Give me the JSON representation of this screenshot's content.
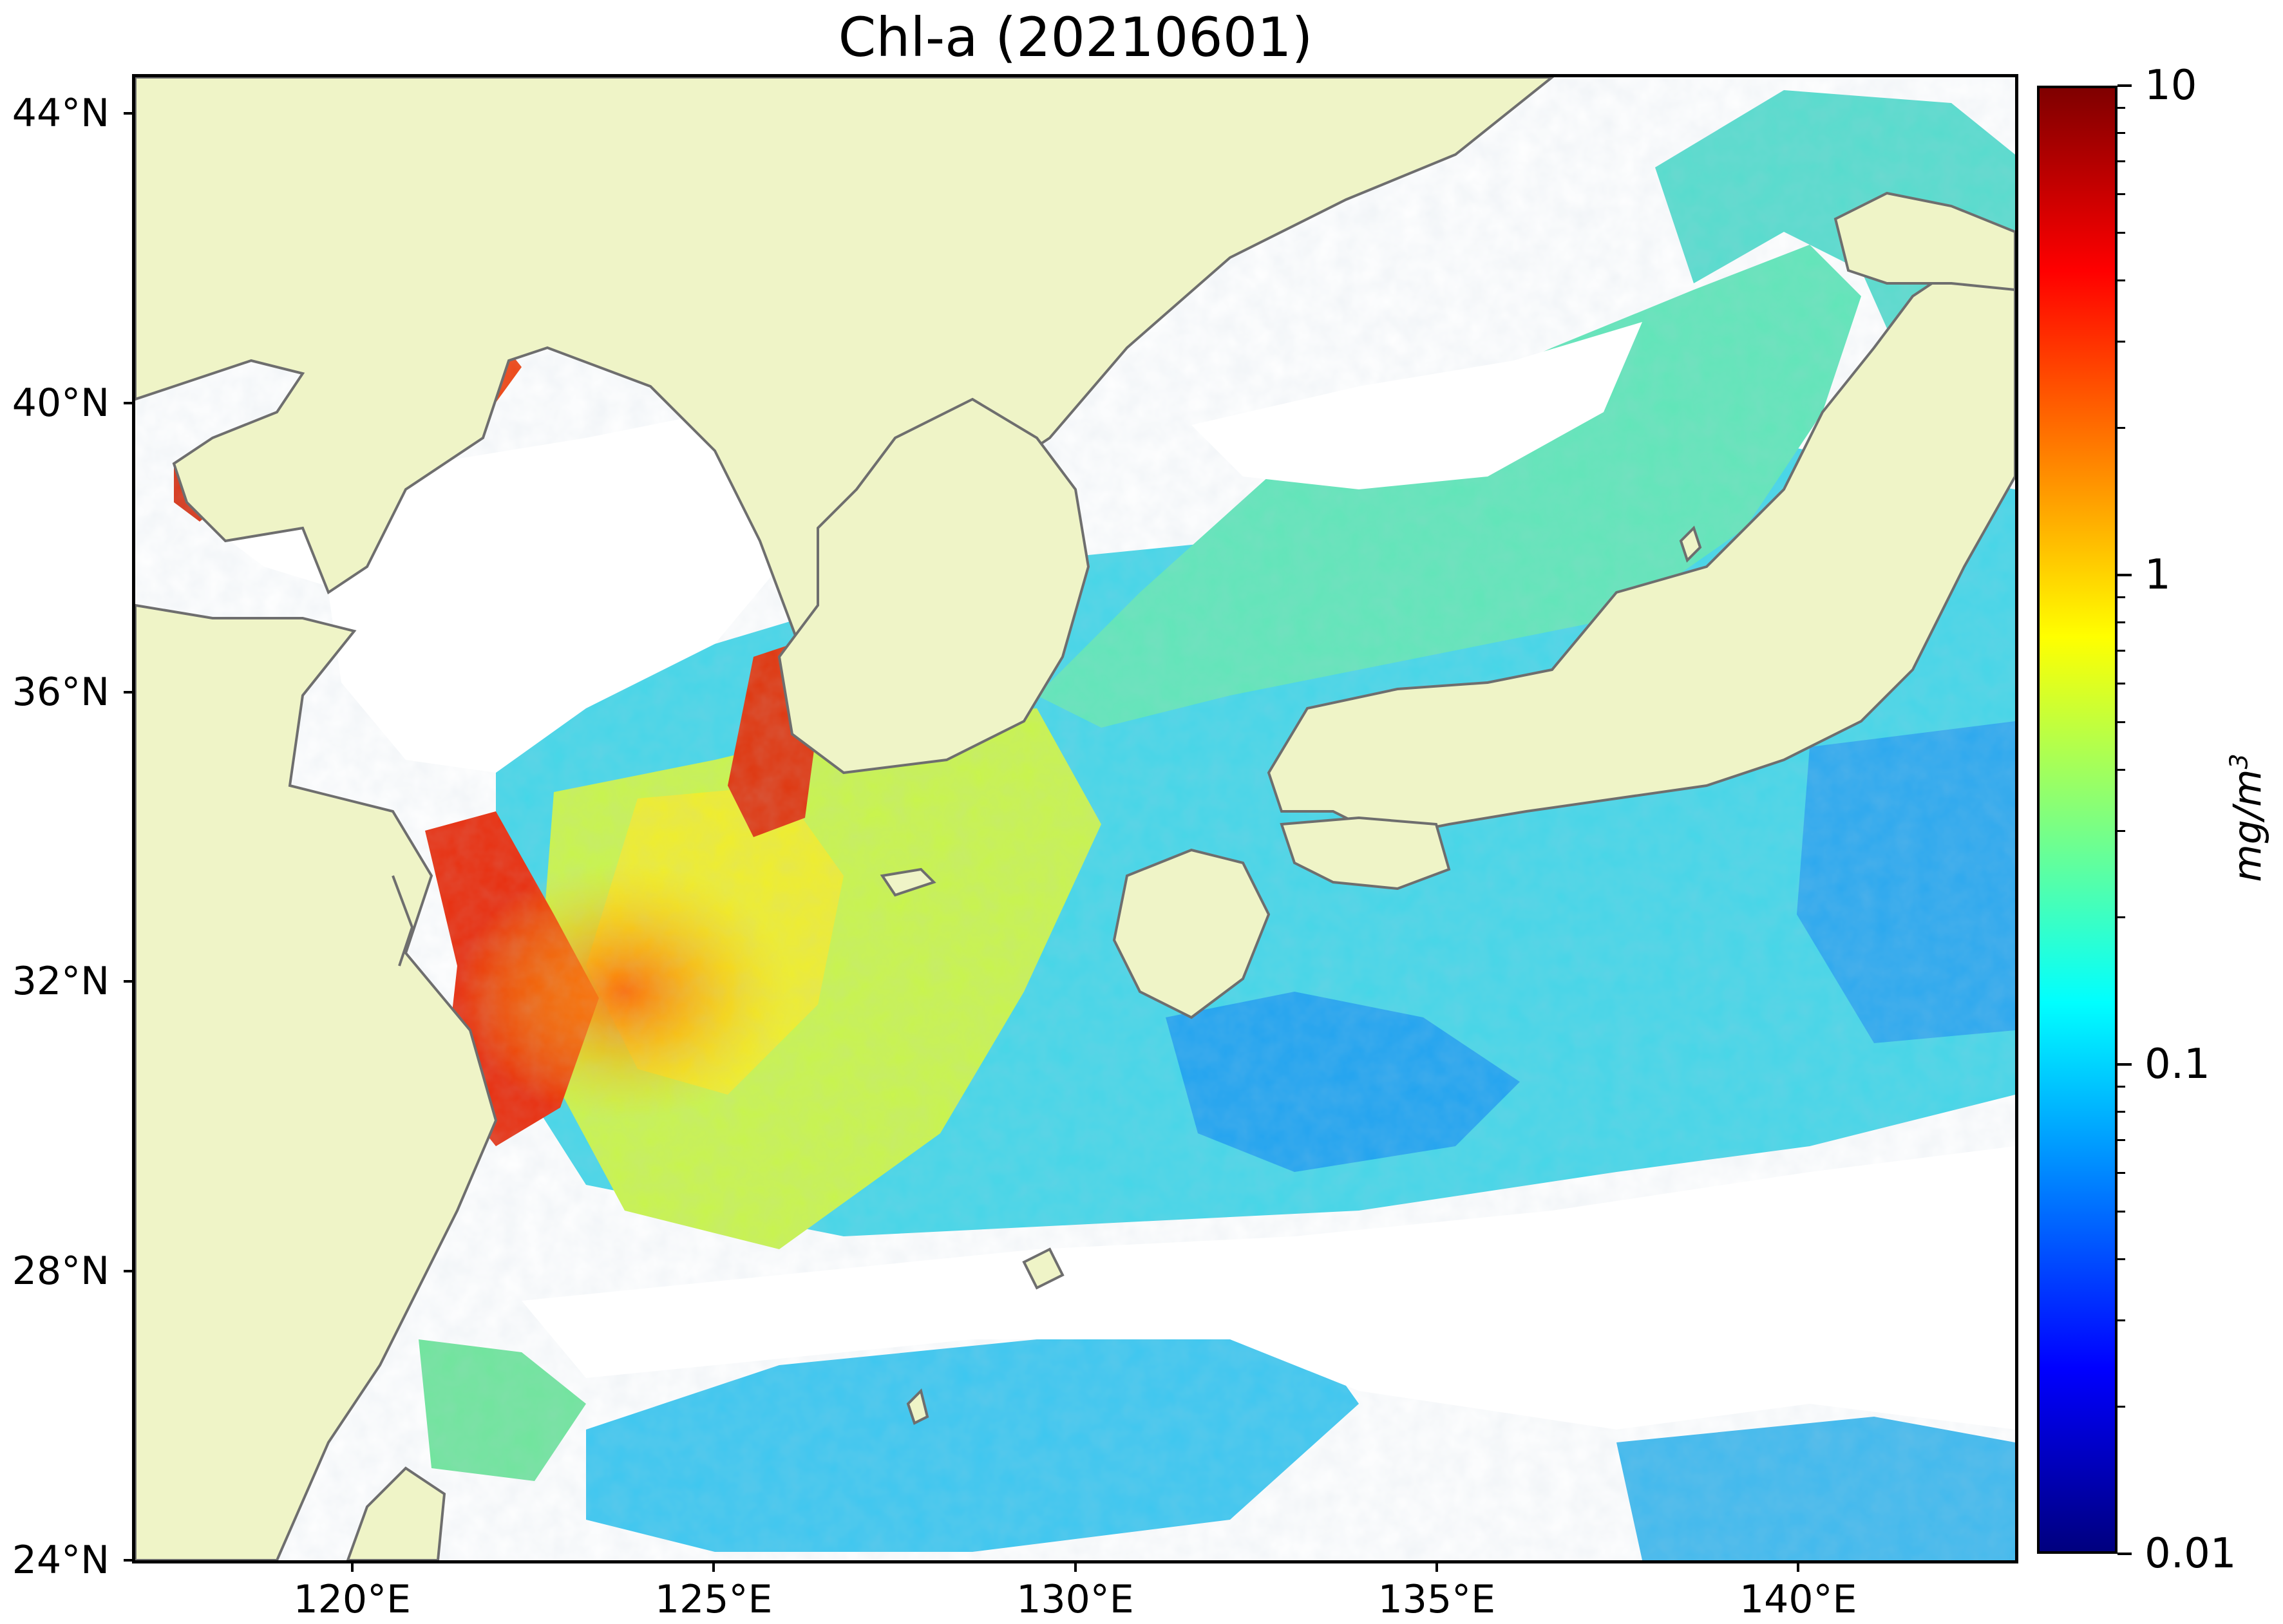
{
  "title": "Chl-a (20210601)",
  "map": {
    "lat_range": [
      24,
      44.5
    ],
    "lon_range": [
      117,
      143
    ],
    "lat_ticks": [
      {
        "value": 44,
        "label": "44°N"
      },
      {
        "value": 40,
        "label": "40°N"
      },
      {
        "value": 36,
        "label": "36°N"
      },
      {
        "value": 32,
        "label": "32°N"
      },
      {
        "value": 28,
        "label": "28°N"
      },
      {
        "value": 24,
        "label": "24°N"
      }
    ],
    "lon_ticks": [
      {
        "value": 120,
        "label": "120°E"
      },
      {
        "value": 125,
        "label": "125°E"
      },
      {
        "value": 130,
        "label": "130°E"
      },
      {
        "value": 135,
        "label": "135°E"
      },
      {
        "value": 140,
        "label": "140°E"
      }
    ],
    "colors": {
      "land": "#eff4c7",
      "no_data": "#ffffff",
      "coastline": "#6e6e6e"
    }
  },
  "colorbar": {
    "unit": "mg/m",
    "unit_exponent": "3",
    "scale": "log",
    "range": [
      0.01,
      10
    ],
    "tick_labels": [
      {
        "value": 10,
        "label": "10"
      },
      {
        "value": 1,
        "label": "1"
      },
      {
        "value": 0.1,
        "label": "0.1"
      },
      {
        "value": 0.01,
        "label": "0.01"
      }
    ],
    "colormap": [
      "#00007f",
      "#0000ff",
      "#007fff",
      "#00ffff",
      "#7fff7f",
      "#ffff00",
      "#ff7f00",
      "#ff0000",
      "#7f0000"
    ]
  }
}
